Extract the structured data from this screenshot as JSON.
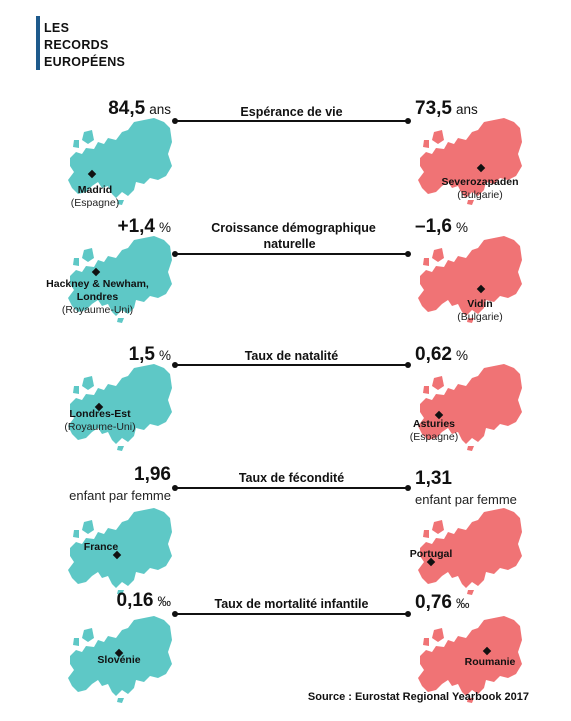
{
  "header": {
    "lines": [
      "LES",
      "RECORDS",
      "EUROPÉENS"
    ]
  },
  "records": [
    {
      "indicator": "Espérance de vie",
      "left": {
        "value": "84,5",
        "unit": "ans",
        "place": "Madrid",
        "country": "(Espagne)"
      },
      "right": {
        "value": "73,5",
        "unit": "ans",
        "place": "Severozapaden",
        "country": "(Bulgarie)"
      }
    },
    {
      "indicator": "Croissance démographique naturelle",
      "left": {
        "value": "+1,4",
        "unit": "%",
        "place": "Hackney & Newham, Londres",
        "country": "(Royaume-Uni)"
      },
      "right": {
        "value": "–1,6",
        "unit": "%",
        "place": "Vidin",
        "country": "(Bulgarie)"
      }
    },
    {
      "indicator": "Taux de natalité",
      "left": {
        "value": "1,5",
        "unit": "%",
        "place": "Londres-Est",
        "country": "(Royaume-Uni)"
      },
      "right": {
        "value": "0,62",
        "unit": "%",
        "place": "Asturies",
        "country": "(Espagne)"
      }
    },
    {
      "indicator": "Taux de fécondité",
      "left": {
        "value": "1,96",
        "subunit": "enfant par femme",
        "place": "France"
      },
      "right": {
        "value": "1,31",
        "subunit": "enfant par femme",
        "place": "Portugal"
      }
    },
    {
      "indicator": "Taux de mortalité infantile",
      "left": {
        "value": "0,16",
        "unit": "‰",
        "place": "Slovénie"
      },
      "right": {
        "value": "0,76",
        "unit": "‰",
        "place": "Roumanie"
      }
    }
  ],
  "colors": {
    "best": "#5ec8c6",
    "worst": "#f07375",
    "header_bar": "#1e5a8c"
  },
  "source": "Source : Eurostat Regional Yearbook 2017"
}
